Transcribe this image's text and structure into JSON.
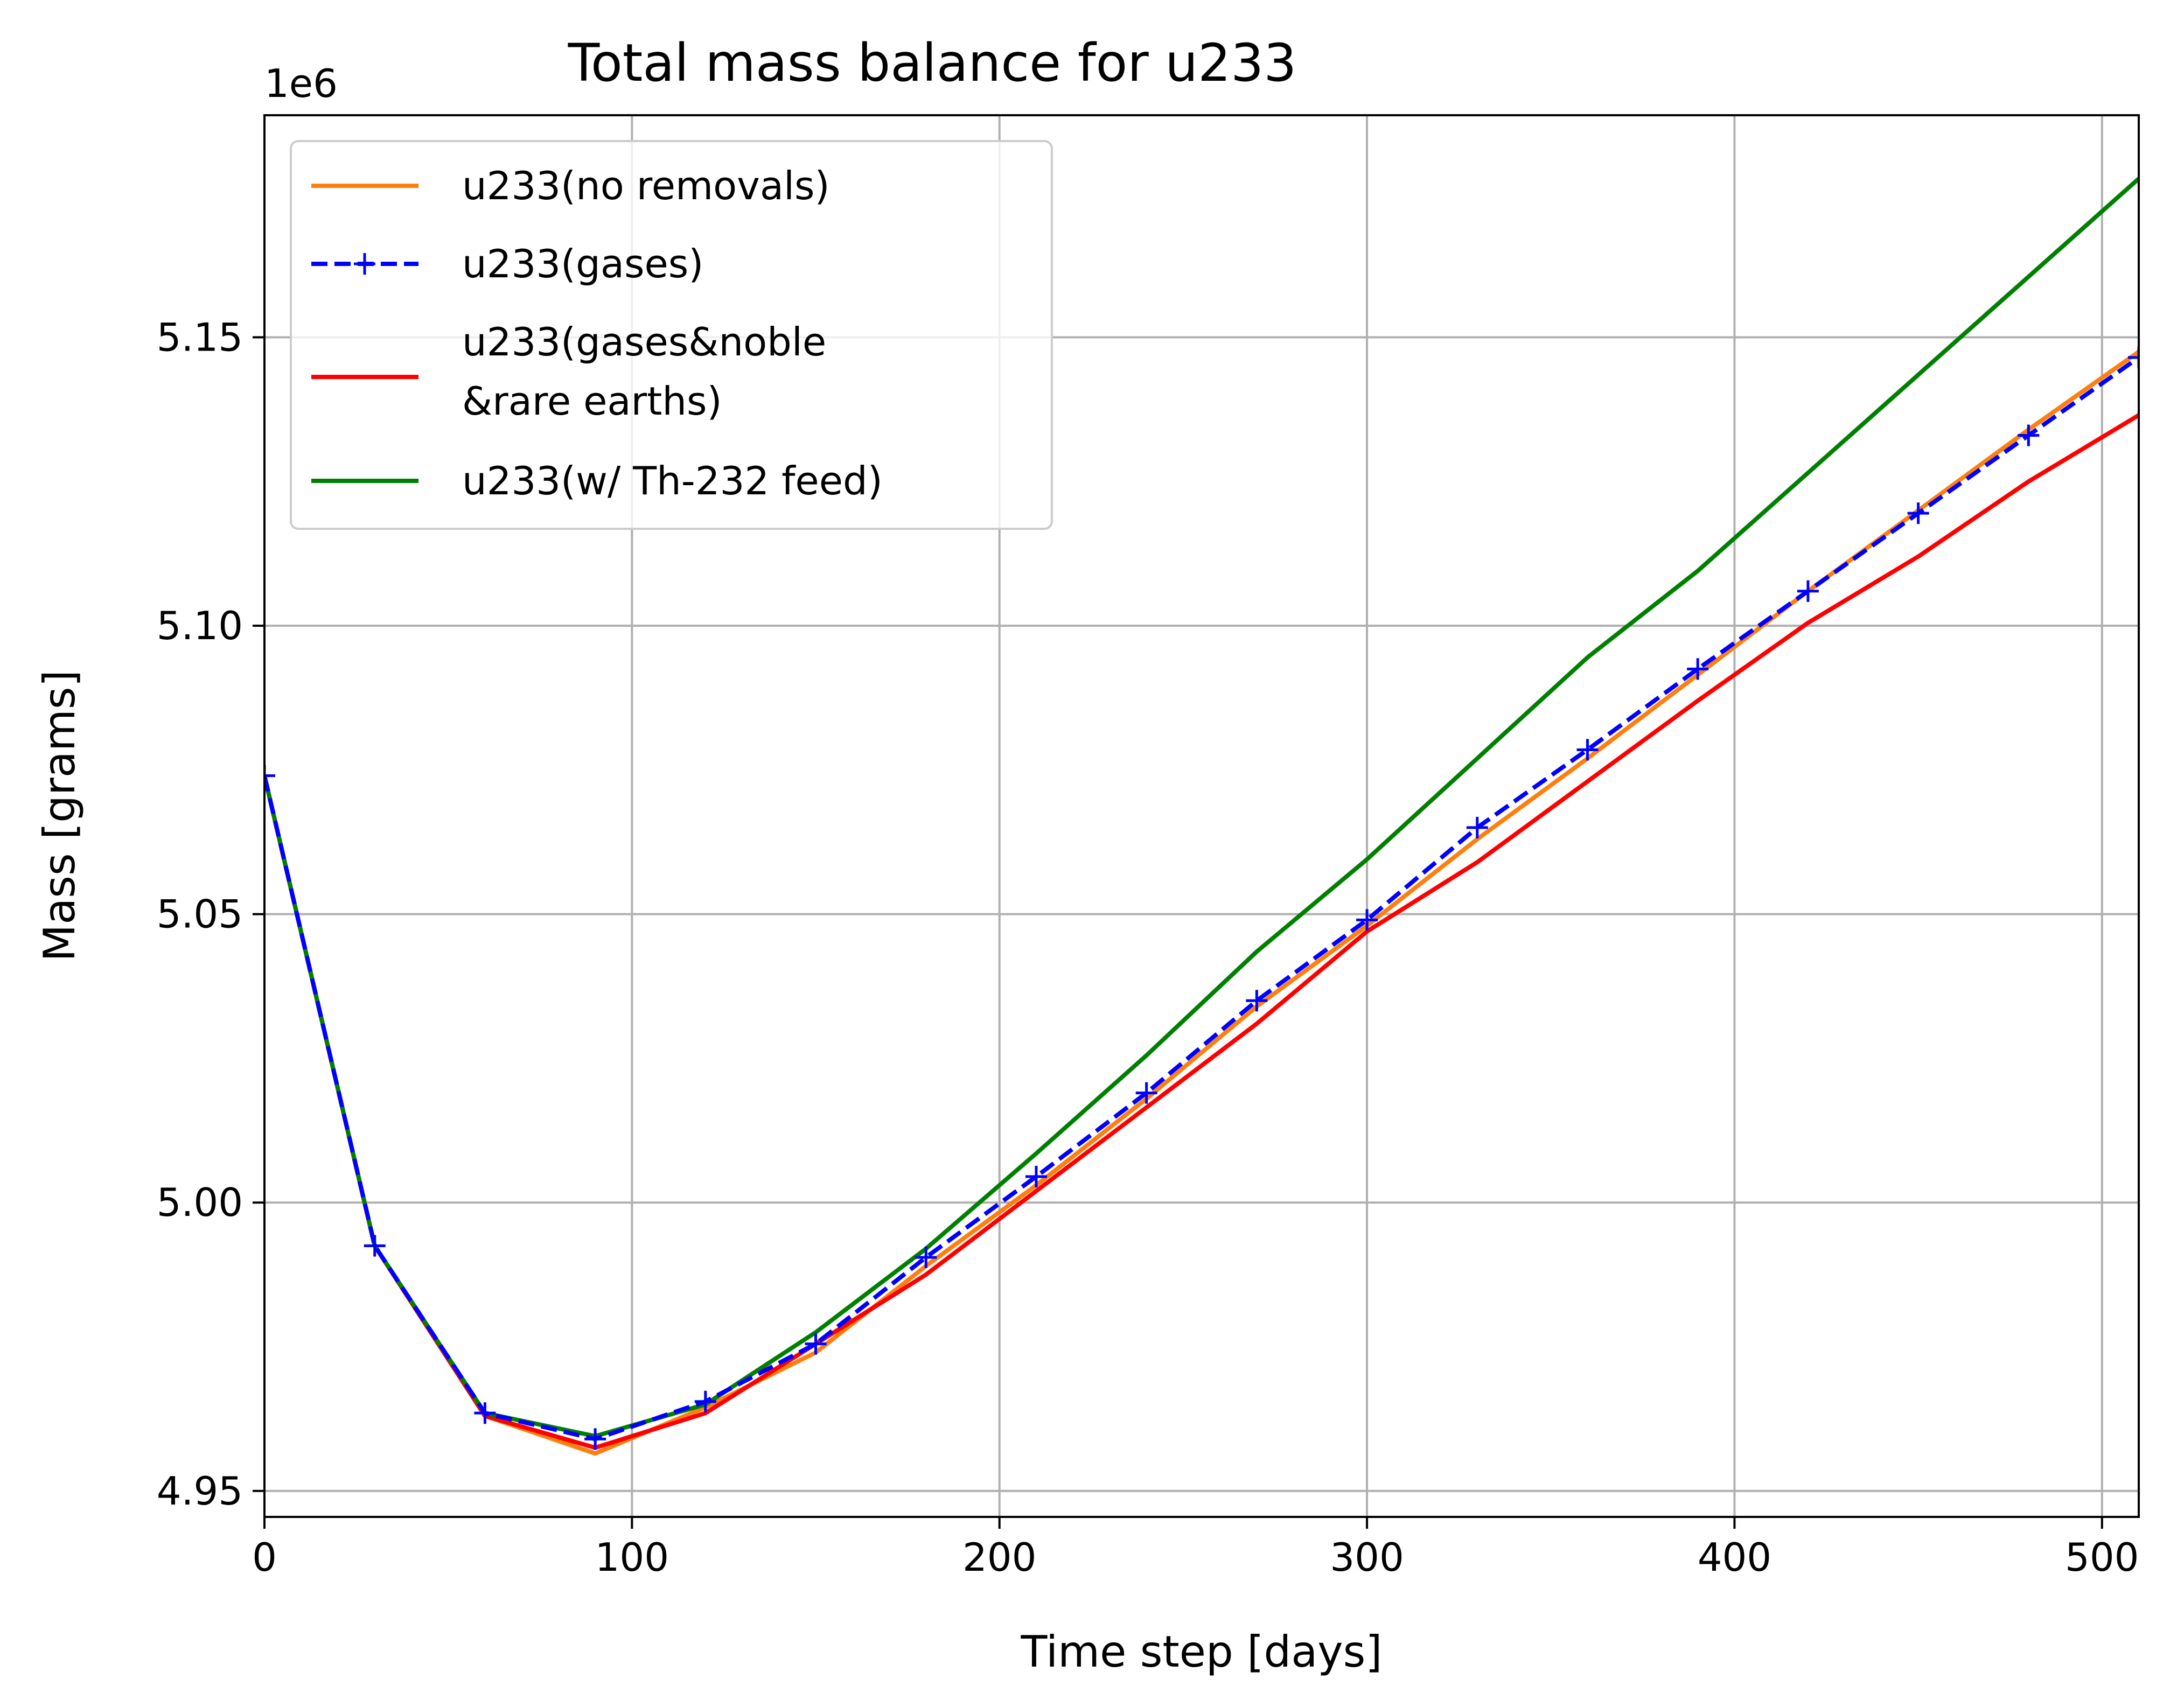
{
  "chart_data": {
    "type": "line",
    "title": "Total mass balance for u233",
    "xlabel": "Time step [days]",
    "ylabel": "Mass [grams]",
    "y_offset_label": "1e6",
    "xlim": [
      0,
      510
    ],
    "ylim": [
      4.9455,
      5.1885
    ],
    "x_ticks": [
      0,
      100,
      200,
      300,
      400,
      500
    ],
    "y_ticks": [
      4.95,
      5.0,
      5.05,
      5.1,
      5.15
    ],
    "x_tick_labels": [
      "0",
      "100",
      "200",
      "300",
      "400",
      "500"
    ],
    "y_tick_labels": [
      "4.95",
      "5.00",
      "5.05",
      "5.10",
      "5.15"
    ],
    "grid": true,
    "legend_position": "upper-left",
    "x": [
      0,
      30,
      60,
      90,
      120,
      150,
      180,
      210,
      240,
      270,
      300,
      330,
      360,
      390,
      420,
      450,
      480,
      510
    ],
    "series": [
      {
        "name": "u233(no removals)",
        "color": "#ff7f0e",
        "style": "solid",
        "marker": "none",
        "values": [
          5.074,
          4.9925,
          4.963,
          4.9565,
          4.9645,
          4.974,
          4.989,
          5.003,
          5.018,
          5.034,
          5.048,
          5.063,
          5.077,
          5.0915,
          5.106,
          5.12,
          5.134,
          5.1475
        ]
      },
      {
        "name": "u233(gases)",
        "color": "#0000ff",
        "style": "dashed",
        "marker": "plus",
        "values": [
          5.074,
          4.9925,
          4.9635,
          4.959,
          4.9655,
          4.9755,
          4.9905,
          5.0045,
          5.019,
          5.035,
          5.049,
          5.065,
          5.0785,
          5.0925,
          5.106,
          5.1195,
          5.133,
          5.1465
        ]
      },
      {
        "name": "u233(gases&noble\n&rare earths)",
        "label_lines": [
          "u233(gases&noble",
          "&rare earths)"
        ],
        "color": "#ff0000",
        "style": "solid",
        "marker": "none",
        "values": [
          5.074,
          4.9925,
          4.963,
          4.9575,
          4.9635,
          4.9755,
          4.9875,
          5.002,
          5.0165,
          5.031,
          5.047,
          5.059,
          5.073,
          5.087,
          5.1005,
          5.112,
          5.125,
          5.1365
        ]
      },
      {
        "name": "u233(w/ Th-232 feed)",
        "color": "#008000",
        "style": "solid",
        "marker": "none",
        "values": [
          5.074,
          4.9925,
          4.9635,
          4.9595,
          4.965,
          4.9775,
          4.992,
          5.0085,
          5.0255,
          5.0435,
          5.0595,
          5.077,
          5.0945,
          5.1095,
          5.1265,
          5.1435,
          5.1605,
          5.1775
        ]
      }
    ]
  }
}
